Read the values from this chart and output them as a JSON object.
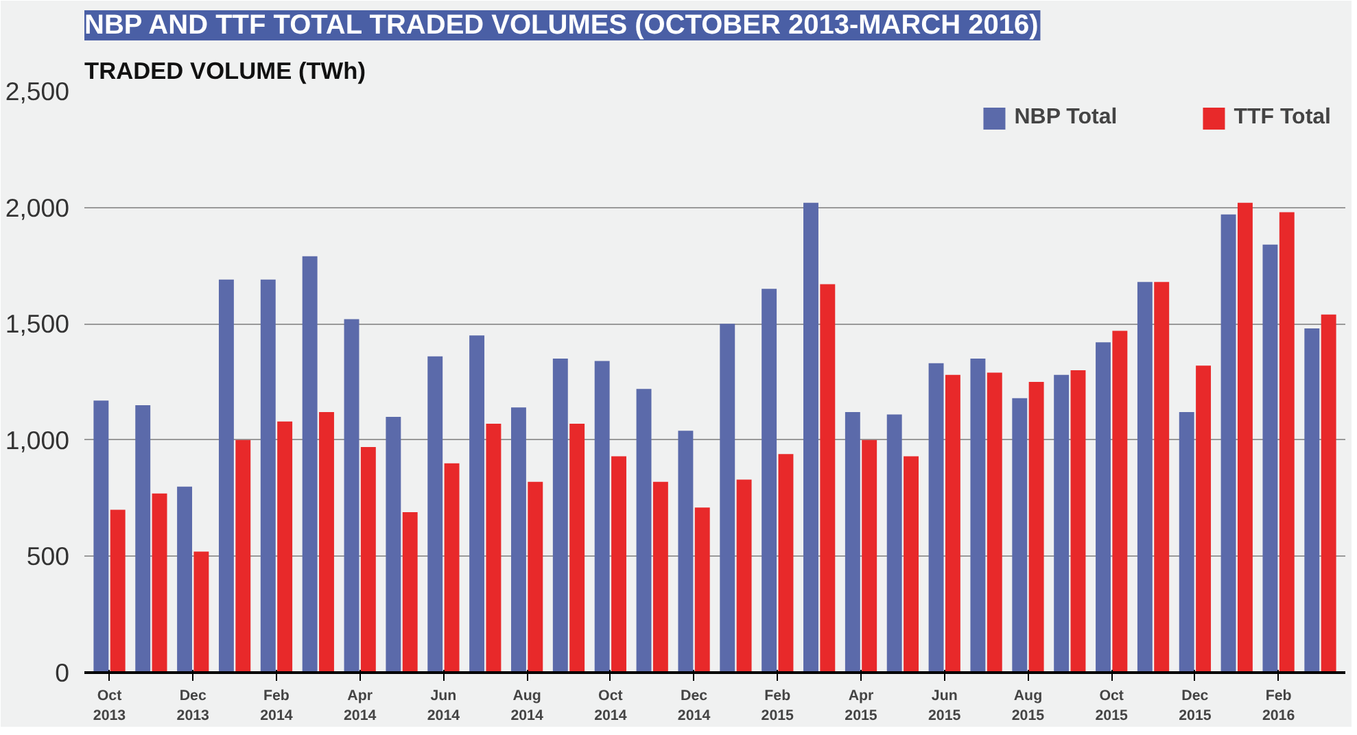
{
  "chart_data": {
    "type": "bar",
    "title": "NBP AND TTF TOTAL TRADED VOLUMES (OCTOBER 2013-MARCH 2016)",
    "ylabel": "TRADED VOLUME (TWh)",
    "categories": [
      "Oct\n2013",
      null,
      "Dec\n2013",
      null,
      "Feb\n2014",
      null,
      "Apr\n2014",
      null,
      "Jun\n2014",
      null,
      "Aug\n2014",
      null,
      "Oct\n2014",
      null,
      "Dec\n2014",
      null,
      "Feb\n2015",
      null,
      "Apr\n2015",
      null,
      "Jun\n2015",
      null,
      "Aug\n2015",
      null,
      "Oct\n2015",
      null,
      "Dec\n2015",
      null,
      "Feb\n2016",
      null
    ],
    "series": [
      {
        "name": "NBP Total",
        "color": "#5b6aaa",
        "values": [
          1170,
          1150,
          800,
          1690,
          1690,
          1790,
          1520,
          1100,
          1360,
          1450,
          1140,
          1350,
          1340,
          1220,
          1040,
          1500,
          1650,
          2020,
          1120,
          1110,
          1330,
          1350,
          1180,
          1280,
          1420,
          1680,
          1120,
          1970,
          1840,
          1480
        ]
      },
      {
        "name": "TTF Total",
        "color": "#e8292a",
        "values": [
          700,
          770,
          520,
          1000,
          1080,
          1120,
          970,
          690,
          900,
          1070,
          820,
          1070,
          930,
          820,
          710,
          830,
          940,
          1670,
          1000,
          930,
          1280,
          1290,
          1250,
          1300,
          1470,
          1680,
          1320,
          2020,
          1980,
          1540
        ]
      }
    ],
    "ylim": [
      0,
      2500
    ],
    "yticks": [
      0,
      {
        "value": 500,
        "label": "500"
      },
      {
        "value": 1000,
        "label": "1,000"
      },
      {
        "value": 1500,
        "label": "1,500"
      },
      {
        "value": 2000,
        "label": "2,000"
      },
      {
        "value": 2500,
        "label": "2,500"
      }
    ],
    "grid": "y",
    "legend": "top right"
  }
}
